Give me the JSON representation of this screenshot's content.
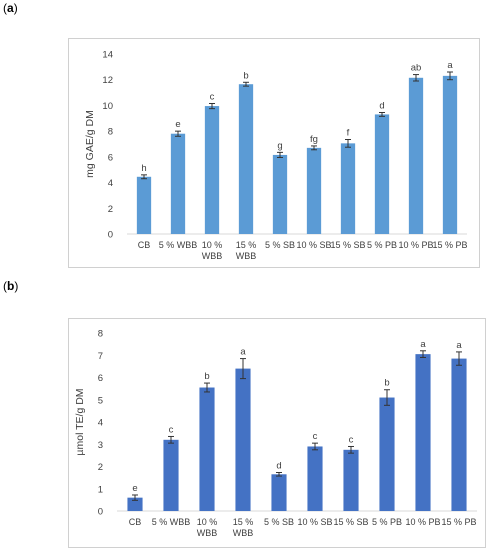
{
  "panels": [
    {
      "label": "a"
    },
    {
      "label": "b"
    }
  ],
  "chart_data": [
    {
      "type": "bar",
      "ylabel": "mg GAE/g DM",
      "ylim": [
        0,
        14
      ],
      "yticks": [
        0,
        2,
        4,
        6,
        8,
        10,
        12,
        14
      ],
      "grid": false,
      "bar_color": "#5b9bd5",
      "categories": [
        [
          "CB"
        ],
        [
          "5 % WBB"
        ],
        [
          "10 %",
          "WBB"
        ],
        [
          "15 %",
          "WBB"
        ],
        [
          "5 % SB"
        ],
        [
          "10 % SB"
        ],
        [
          "15 % SB"
        ],
        [
          "5 % PB"
        ],
        [
          "10 % PB"
        ],
        [
          "15 % PB"
        ]
      ],
      "values": [
        4.45,
        7.8,
        9.95,
        11.65,
        6.15,
        6.7,
        7.05,
        9.3,
        12.15,
        12.3
      ],
      "errors": [
        0.15,
        0.2,
        0.2,
        0.15,
        0.2,
        0.15,
        0.3,
        0.15,
        0.25,
        0.3
      ],
      "letters": [
        "h",
        "e",
        "c",
        "b",
        "g",
        "fg",
        "f",
        "d",
        "ab",
        "a"
      ]
    },
    {
      "type": "bar",
      "ylabel": "µmol TE/g DM",
      "ylim": [
        0,
        8
      ],
      "yticks": [
        0,
        1,
        2,
        3,
        4,
        5,
        6,
        7,
        8
      ],
      "grid": false,
      "bar_color": "#4472c4",
      "categories": [
        [
          "CB"
        ],
        [
          "5 % WBB"
        ],
        [
          "10 %",
          "WBB"
        ],
        [
          "15 %",
          "WBB"
        ],
        [
          "5 % SB"
        ],
        [
          "10 % SB"
        ],
        [
          "15 % SB"
        ],
        [
          "5 % PB"
        ],
        [
          "10 % PB"
        ],
        [
          "15 % PB"
        ]
      ],
      "values": [
        0.6,
        3.2,
        5.55,
        6.4,
        1.65,
        2.9,
        2.75,
        5.1,
        7.05,
        6.85
      ],
      "errors": [
        0.12,
        0.15,
        0.2,
        0.45,
        0.08,
        0.15,
        0.15,
        0.35,
        0.15,
        0.3
      ],
      "letters": [
        "e",
        "c",
        "b",
        "a",
        "d",
        "c",
        "c",
        "b",
        "a",
        "a"
      ]
    }
  ]
}
